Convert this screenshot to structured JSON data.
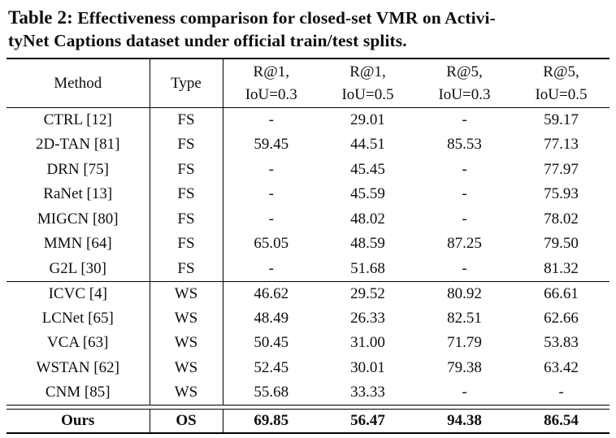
{
  "caption": {
    "label": "Table 2:",
    "line1_rest": " Effectiveness comparison for closed-set VMR on Activi-",
    "line2": "tyNet Captions dataset under official train/test splits."
  },
  "table": {
    "headers": {
      "method": "Method",
      "type": "Type",
      "metrics": [
        {
          "line1": "R@1,",
          "line2": "IoU=0.3"
        },
        {
          "line1": "R@1,",
          "line2": "IoU=0.5"
        },
        {
          "line1": "R@5,",
          "line2": "IoU=0.3"
        },
        {
          "line1": "R@5,",
          "line2": "IoU=0.5"
        }
      ]
    },
    "sections": [
      {
        "rows": [
          {
            "method": "CTRL [12]",
            "type": "FS",
            "values": [
              "-",
              "29.01",
              "-",
              "59.17"
            ]
          },
          {
            "method": "2D-TAN [81]",
            "type": "FS",
            "values": [
              "59.45",
              "44.51",
              "85.53",
              "77.13"
            ]
          },
          {
            "method": "DRN [75]",
            "type": "FS",
            "values": [
              "-",
              "45.45",
              "-",
              "77.97"
            ]
          },
          {
            "method": "RaNet [13]",
            "type": "FS",
            "values": [
              "-",
              "45.59",
              "-",
              "75.93"
            ]
          },
          {
            "method": "MIGCN [80]",
            "type": "FS",
            "values": [
              "-",
              "48.02",
              "-",
              "78.02"
            ]
          },
          {
            "method": "MMN [64]",
            "type": "FS",
            "values": [
              "65.05",
              "48.59",
              "87.25",
              "79.50"
            ]
          },
          {
            "method": "G2L [30]",
            "type": "FS",
            "values": [
              "-",
              "51.68",
              "-",
              "81.32"
            ]
          }
        ]
      },
      {
        "rows": [
          {
            "method": "ICVC [4]",
            "type": "WS",
            "values": [
              "46.62",
              "29.52",
              "80.92",
              "66.61"
            ]
          },
          {
            "method": "LCNet [65]",
            "type": "WS",
            "values": [
              "48.49",
              "26.33",
              "82.51",
              "62.66"
            ]
          },
          {
            "method": "VCA [63]",
            "type": "WS",
            "values": [
              "50.45",
              "31.00",
              "71.79",
              "53.83"
            ]
          },
          {
            "method": "WSTAN [62]",
            "type": "WS",
            "values": [
              "52.45",
              "30.01",
              "79.38",
              "63.42"
            ]
          },
          {
            "method": "CNM [85]",
            "type": "WS",
            "values": [
              "55.68",
              "33.33",
              "-",
              "-"
            ]
          }
        ]
      }
    ],
    "ours": {
      "method": "Ours",
      "type": "OS",
      "values": [
        "69.85",
        "56.47",
        "94.38",
        "86.54"
      ]
    }
  }
}
